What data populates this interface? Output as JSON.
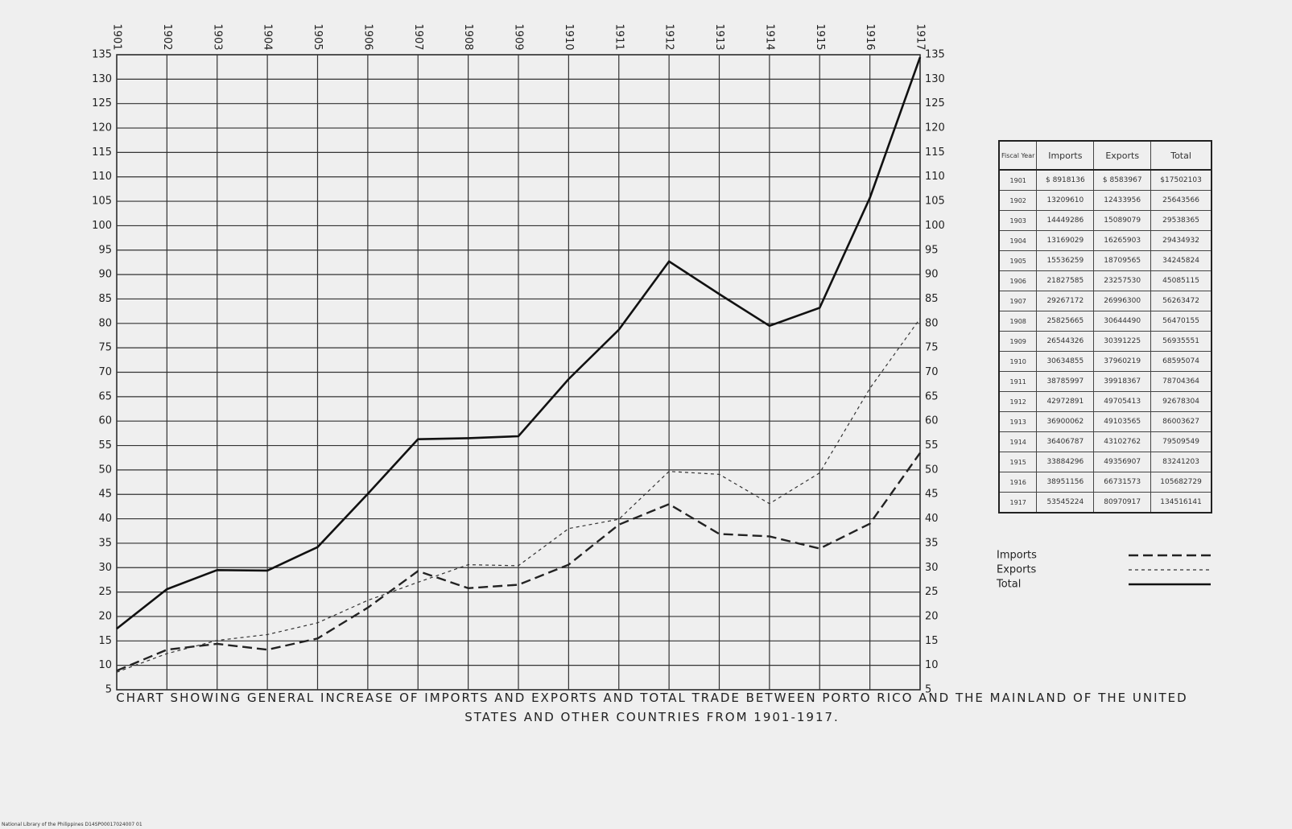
{
  "chart_data": {
    "type": "line",
    "title": "CHART SHOWING GENERAL INCREASE OF IMPORTS AND EXPORTS AND TOTAL TRADE BETWEEN PORTO RICO AND THE MAINLAND OF THE UNITED STATES AND OTHER COUNTRIES FROM 1901-1917.",
    "x": [
      1901,
      1902,
      1903,
      1904,
      1905,
      1906,
      1907,
      1908,
      1909,
      1910,
      1911,
      1912,
      1913,
      1914,
      1915,
      1916,
      1917
    ],
    "xlim": [
      1901,
      1917
    ],
    "xticks": [
      1901,
      1902,
      1903,
      1904,
      1905,
      1906,
      1907,
      1908,
      1909,
      1910,
      1911,
      1912,
      1913,
      1914,
      1915,
      1916,
      1917
    ],
    "ylim": [
      5,
      135
    ],
    "yticks": [
      5,
      10,
      15,
      20,
      25,
      30,
      35,
      40,
      45,
      50,
      55,
      60,
      65,
      70,
      75,
      80,
      85,
      90,
      95,
      100,
      105,
      110,
      115,
      120,
      125,
      130,
      135
    ],
    "grid": true,
    "series": [
      {
        "name": "Imports",
        "color": "#222222",
        "style": "dashed",
        "values": [
          8.9,
          13.2,
          14.4,
          13.2,
          15.5,
          21.8,
          29.3,
          25.8,
          26.5,
          30.6,
          38.8,
          43.0,
          36.9,
          36.4,
          33.9,
          39.0,
          53.5
        ]
      },
      {
        "name": "Exports",
        "color": "#333333",
        "style": "dotted",
        "values": [
          8.6,
          12.4,
          15.1,
          16.3,
          18.7,
          23.3,
          27.0,
          30.6,
          30.4,
          38.0,
          39.9,
          49.7,
          49.1,
          43.1,
          49.4,
          66.7,
          81.0
        ]
      },
      {
        "name": "Total",
        "color": "#111111",
        "style": "solid",
        "values": [
          17.5,
          25.6,
          29.5,
          29.4,
          34.2,
          45.1,
          56.3,
          56.5,
          56.9,
          68.6,
          78.7,
          92.7,
          86.0,
          79.5,
          83.2,
          105.7,
          134.5
        ]
      }
    ]
  },
  "table": {
    "header": [
      "Fiscal Year",
      "Imports",
      "Exports",
      "Total"
    ],
    "rows": [
      [
        "1901",
        "$ 8918136",
        "$ 8583967",
        "$17502103"
      ],
      [
        "1902",
        "13209610",
        "12433956",
        "25643566"
      ],
      [
        "1903",
        "14449286",
        "15089079",
        "29538365"
      ],
      [
        "1904",
        "13169029",
        "16265903",
        "29434932"
      ],
      [
        "1905",
        "15536259",
        "18709565",
        "34245824"
      ],
      [
        "1906",
        "21827585",
        "23257530",
        "45085115"
      ],
      [
        "1907",
        "29267172",
        "26996300",
        "56263472"
      ],
      [
        "1908",
        "25825665",
        "30644490",
        "56470155"
      ],
      [
        "1909",
        "26544326",
        "30391225",
        "56935551"
      ],
      [
        "1910",
        "30634855",
        "37960219",
        "68595074"
      ],
      [
        "1911",
        "38785997",
        "39918367",
        "78704364"
      ],
      [
        "1912",
        "42972891",
        "49705413",
        "92678304"
      ],
      [
        "1913",
        "36900062",
        "49103565",
        "86003627"
      ],
      [
        "1914",
        "36406787",
        "43102762",
        "79509549"
      ],
      [
        "1915",
        "33884296",
        "49356907",
        "83241203"
      ],
      [
        "1916",
        "38951156",
        "66731573",
        "105682729"
      ],
      [
        "1917",
        "53545224",
        "80970917",
        "134516141"
      ]
    ]
  },
  "footer": "National Library of the Philippines   D14SP00017024007 01"
}
